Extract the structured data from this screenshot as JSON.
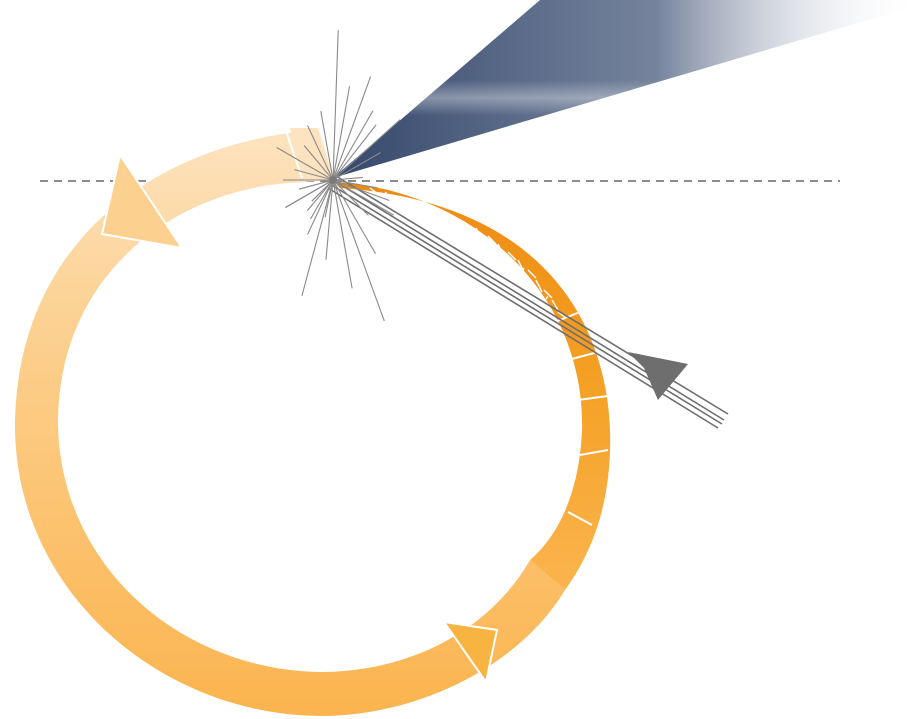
{
  "diagram": {
    "colors": {
      "ring_light": "#fde3bf",
      "ring_mid": "#fcc978",
      "ring_main": "#fbb44e",
      "ring_dark": "#f29f1e",
      "ring_deep": "#ef8a12",
      "beam_dark": "#34476b",
      "beam_light": "#ffffff",
      "spark": "#8a8a8a",
      "incoming_beam": "#6e6e6e",
      "baseline": "#8c8c8c"
    },
    "icons": {
      "circulating_direction_arrows": "arrow-head-icon",
      "incoming_beam_arrow": "arrow-head-icon",
      "interaction_point": "spark-burst-icon"
    }
  }
}
